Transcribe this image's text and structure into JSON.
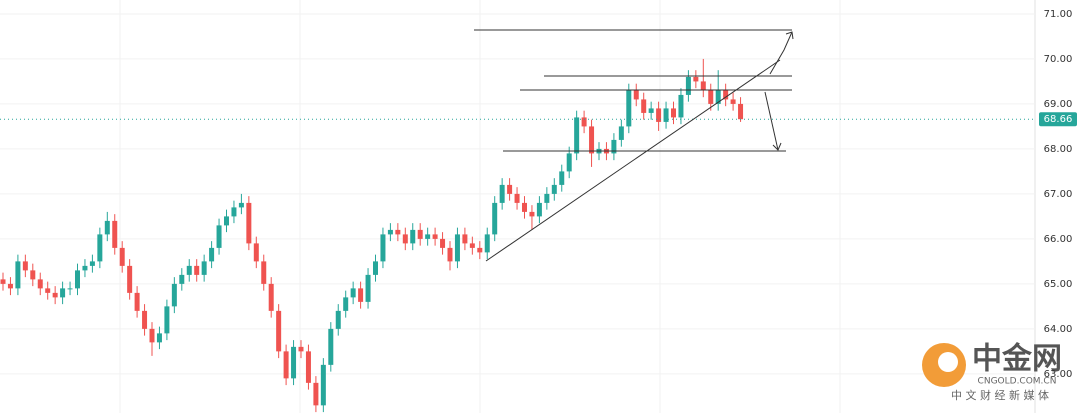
{
  "chart_data": {
    "type": "candlestick",
    "ylim": [
      62.13,
      71.31
    ],
    "yticks": [
      {
        "value": 63,
        "label": "63.00"
      },
      {
        "value": 64,
        "label": "64.00"
      },
      {
        "value": 65,
        "label": "65.00"
      },
      {
        "value": 66,
        "label": "66.00"
      },
      {
        "value": 67,
        "label": "67.00"
      },
      {
        "value": 68,
        "label": "68.00"
      },
      {
        "value": 69,
        "label": "69.00"
      },
      {
        "value": 70,
        "label": "70.00"
      },
      {
        "value": 71,
        "label": "71.00"
      }
    ],
    "grid": true,
    "up_color": "#26a69a",
    "down_color": "#ef5350",
    "last_price": 68.66,
    "candles": [
      [
        65.1,
        65.25,
        64.85,
        65.0
      ],
      [
        65.0,
        65.15,
        64.75,
        64.9
      ],
      [
        64.9,
        65.65,
        64.75,
        65.5
      ],
      [
        65.5,
        65.65,
        65.15,
        65.3
      ],
      [
        65.3,
        65.45,
        64.95,
        65.1
      ],
      [
        65.1,
        65.25,
        64.75,
        64.9
      ],
      [
        64.9,
        65.05,
        64.65,
        64.8
      ],
      [
        64.8,
        64.95,
        64.55,
        64.7
      ],
      [
        64.7,
        65.05,
        64.55,
        64.9
      ],
      [
        64.9,
        65.05,
        64.75,
        64.9
      ],
      [
        64.9,
        65.45,
        64.75,
        65.3
      ],
      [
        65.3,
        65.55,
        65.15,
        65.4
      ],
      [
        65.4,
        65.65,
        65.25,
        65.5
      ],
      [
        65.5,
        66.25,
        65.35,
        66.1
      ],
      [
        66.1,
        66.6,
        65.95,
        66.4
      ],
      [
        66.4,
        66.55,
        65.65,
        65.8
      ],
      [
        65.8,
        65.95,
        65.25,
        65.4
      ],
      [
        65.4,
        65.55,
        64.65,
        64.8
      ],
      [
        64.8,
        64.95,
        64.25,
        64.4
      ],
      [
        64.4,
        64.55,
        63.85,
        64.0
      ],
      [
        64.0,
        64.15,
        63.4,
        63.7
      ],
      [
        63.7,
        64.05,
        63.55,
        63.9
      ],
      [
        63.9,
        64.65,
        63.75,
        64.5
      ],
      [
        64.5,
        65.15,
        64.35,
        65.0
      ],
      [
        65.0,
        65.35,
        64.85,
        65.2
      ],
      [
        65.2,
        65.55,
        65.05,
        65.4
      ],
      [
        65.4,
        65.55,
        65.05,
        65.2
      ],
      [
        65.2,
        65.65,
        65.05,
        65.5
      ],
      [
        65.5,
        65.95,
        65.35,
        65.8
      ],
      [
        65.8,
        66.45,
        65.65,
        66.3
      ],
      [
        66.3,
        66.65,
        66.15,
        66.5
      ],
      [
        66.5,
        66.85,
        66.35,
        66.7
      ],
      [
        66.7,
        67.0,
        66.55,
        66.8
      ],
      [
        66.8,
        66.95,
        65.75,
        65.9
      ],
      [
        65.9,
        66.05,
        65.35,
        65.5
      ],
      [
        65.5,
        65.65,
        64.85,
        65.0
      ],
      [
        65.0,
        65.15,
        64.25,
        64.4
      ],
      [
        64.4,
        64.55,
        63.35,
        63.5
      ],
      [
        63.5,
        63.65,
        62.75,
        62.9
      ],
      [
        62.9,
        63.75,
        62.75,
        63.6
      ],
      [
        63.6,
        63.75,
        63.35,
        63.5
      ],
      [
        63.5,
        63.65,
        62.65,
        62.8
      ],
      [
        62.8,
        62.95,
        62.15,
        62.3
      ],
      [
        62.3,
        63.35,
        62.15,
        63.2
      ],
      [
        63.2,
        64.15,
        63.05,
        64.0
      ],
      [
        64.0,
        64.55,
        63.85,
        64.4
      ],
      [
        64.4,
        64.85,
        64.25,
        64.7
      ],
      [
        64.7,
        65.05,
        64.55,
        64.9
      ],
      [
        64.9,
        65.05,
        64.45,
        64.6
      ],
      [
        64.6,
        65.35,
        64.45,
        65.2
      ],
      [
        65.2,
        65.65,
        65.05,
        65.5
      ],
      [
        65.5,
        66.25,
        65.35,
        66.1
      ],
      [
        66.1,
        66.35,
        65.95,
        66.2
      ],
      [
        66.2,
        66.35,
        65.95,
        66.1
      ],
      [
        66.1,
        66.25,
        65.75,
        65.9
      ],
      [
        65.9,
        66.35,
        65.75,
        66.2
      ],
      [
        66.2,
        66.35,
        65.85,
        66.0
      ],
      [
        66.0,
        66.25,
        65.85,
        66.1
      ],
      [
        66.1,
        66.25,
        65.85,
        66.0
      ],
      [
        66.0,
        66.15,
        65.65,
        65.8
      ],
      [
        65.8,
        65.95,
        65.3,
        65.5
      ],
      [
        65.5,
        66.25,
        65.35,
        66.1
      ],
      [
        66.1,
        66.25,
        65.75,
        65.9
      ],
      [
        65.9,
        66.05,
        65.65,
        65.8
      ],
      [
        65.8,
        65.95,
        65.55,
        65.7
      ],
      [
        65.7,
        66.25,
        65.55,
        66.1
      ],
      [
        66.1,
        66.95,
        65.95,
        66.8
      ],
      [
        66.8,
        67.35,
        66.65,
        67.2
      ],
      [
        67.2,
        67.35,
        66.85,
        67.0
      ],
      [
        67.0,
        67.15,
        66.65,
        66.8
      ],
      [
        66.8,
        66.95,
        66.45,
        66.6
      ],
      [
        66.6,
        66.75,
        66.2,
        66.5
      ],
      [
        66.5,
        66.95,
        66.35,
        66.8
      ],
      [
        66.8,
        67.15,
        66.65,
        67.0
      ],
      [
        67.0,
        67.35,
        66.85,
        67.2
      ],
      [
        67.2,
        67.65,
        67.05,
        67.5
      ],
      [
        67.5,
        68.05,
        67.35,
        67.9
      ],
      [
        67.9,
        68.85,
        67.75,
        68.7
      ],
      [
        68.7,
        68.85,
        68.35,
        68.5
      ],
      [
        68.5,
        68.65,
        67.6,
        67.9
      ],
      [
        67.9,
        68.15,
        67.75,
        68.0
      ],
      [
        68.0,
        68.15,
        67.75,
        67.9
      ],
      [
        67.9,
        68.35,
        67.75,
        68.2
      ],
      [
        68.2,
        68.65,
        68.05,
        68.5
      ],
      [
        68.5,
        69.45,
        68.35,
        69.3
      ],
      [
        69.3,
        69.45,
        68.95,
        69.1
      ],
      [
        69.1,
        69.25,
        68.65,
        68.8
      ],
      [
        68.8,
        69.05,
        68.65,
        68.9
      ],
      [
        68.9,
        69.05,
        68.4,
        68.6
      ],
      [
        68.6,
        69.05,
        68.45,
        68.9
      ],
      [
        68.9,
        69.05,
        68.55,
        68.7
      ],
      [
        68.7,
        69.35,
        68.55,
        69.2
      ],
      [
        69.2,
        69.75,
        69.05,
        69.6
      ],
      [
        69.6,
        69.75,
        69.35,
        69.5
      ],
      [
        69.5,
        70.0,
        69.15,
        69.3
      ],
      [
        69.3,
        69.45,
        68.85,
        69.0
      ],
      [
        69.0,
        69.75,
        68.85,
        69.3
      ],
      [
        69.3,
        69.45,
        68.95,
        69.1
      ],
      [
        69.1,
        69.25,
        68.85,
        69.0
      ],
      [
        69.0,
        69.15,
        68.6,
        68.66
      ]
    ]
  },
  "watermark": {
    "brand": "中金网",
    "site": "CNGOLD.COM.CN",
    "tagline": "中 文 财 经 新 媒 体"
  }
}
